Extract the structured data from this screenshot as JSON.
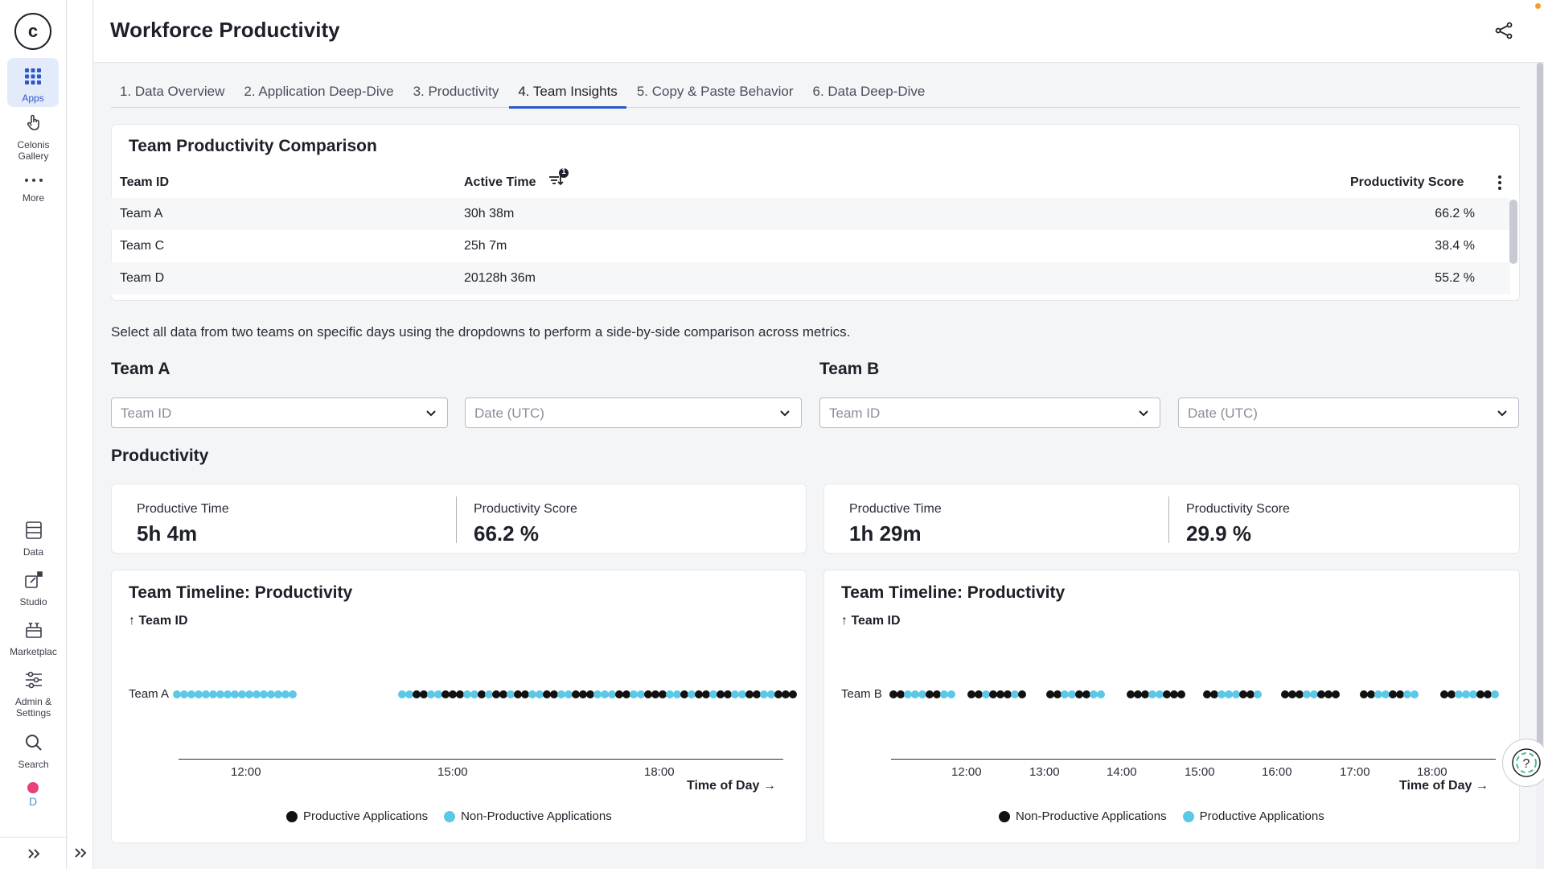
{
  "app": {
    "title": "Workforce Productivity",
    "logo_letter": "c"
  },
  "rail": {
    "items": [
      {
        "label": "Apps",
        "icon": "apps-grid-icon"
      },
      {
        "label": "Celonis Gallery",
        "icon": "hand-pointer-icon"
      },
      {
        "label": "More",
        "icon": "more-dots-icon"
      },
      {
        "label": "Data",
        "icon": "database-icon"
      },
      {
        "label": "Studio",
        "icon": "studio-icon"
      },
      {
        "label": "Marketplac",
        "icon": "marketplace-icon"
      },
      {
        "label": "Admin & Settings",
        "icon": "sliders-icon"
      },
      {
        "label": "Search",
        "icon": "search-icon"
      }
    ],
    "avatar_letter": "D"
  },
  "tabs": [
    {
      "label": "1. Data Overview",
      "active": false
    },
    {
      "label": "2. Application Deep-Dive",
      "active": false
    },
    {
      "label": "3. Productivity",
      "active": false
    },
    {
      "label": "4. Team Insights",
      "active": true
    },
    {
      "label": "5. Copy & Paste Behavior",
      "active": false
    },
    {
      "label": "6. Data Deep-Dive",
      "active": false
    }
  ],
  "comparison": {
    "title": "Team Productivity Comparison",
    "columns": [
      "Team ID",
      "Active Time",
      "Productivity Score"
    ],
    "sort_badge": "1",
    "rows": [
      {
        "team": "Team A",
        "active": "30h 38m",
        "score": "66.2 %"
      },
      {
        "team": "Team C",
        "active": "25h 7m",
        "score": "38.4 %"
      },
      {
        "team": "Team D",
        "active": "20128h 36m",
        "score": "55.2 %"
      }
    ]
  },
  "description": "Select all data from two teams on specific days using the dropdowns to perform a side-by-side comparison across metrics.",
  "team_a": {
    "heading": "Team A",
    "team_placeholder": "Team ID",
    "date_placeholder": "Date (UTC)"
  },
  "team_b": {
    "heading": "Team B",
    "team_placeholder": "Team ID",
    "date_placeholder": "Date (UTC)"
  },
  "productivity": {
    "heading": "Productivity",
    "left": {
      "time_label": "Productive Time",
      "time_value": "5h 4m",
      "score_label": "Productivity Score",
      "score_value": "66.2 %"
    },
    "right": {
      "time_label": "Productive Time",
      "time_value": "1h 29m",
      "score_label": "Productivity Score",
      "score_value": "29.9 %"
    }
  },
  "timelines": {
    "left": {
      "title": "Team Timeline: Productivity",
      "sort_label": "↑ Team ID",
      "row_label": "Team A",
      "ticks": [
        "12:00",
        "15:00",
        "18:00"
      ],
      "xlabel": "Time of Day →",
      "legend": [
        "Productive Applications",
        "Non-Productive Applications"
      ]
    },
    "right": {
      "title": "Team Timeline: Productivity",
      "sort_label": "↑ Team ID",
      "row_label": "Team B",
      "ticks": [
        "12:00",
        "13:00",
        "14:00",
        "15:00",
        "16:00",
        "17:00",
        "18:00"
      ],
      "xlabel": "Time of Day →",
      "legend": [
        "Non-Productive Applications",
        "Productive Applications"
      ]
    }
  },
  "colors": {
    "black_series": "#111111",
    "cyan_series": "#5bc8e8",
    "accent": "#2d58c8",
    "avatar_dot": "#e8407a"
  },
  "chart_data": [
    {
      "type": "scatter",
      "title": "Team Timeline: Productivity",
      "xlabel": "Time of Day",
      "ylabel": "Team ID",
      "categories": [
        "Team A"
      ],
      "xticks": [
        "12:00",
        "15:00",
        "18:00"
      ],
      "series": [
        {
          "name": "Productive Applications",
          "color": "#111111"
        },
        {
          "name": "Non-Productive Applications",
          "color": "#5bc8e8"
        }
      ]
    },
    {
      "type": "scatter",
      "title": "Team Timeline: Productivity",
      "xlabel": "Time of Day",
      "ylabel": "Team ID",
      "categories": [
        "Team B"
      ],
      "xticks": [
        "12:00",
        "13:00",
        "14:00",
        "15:00",
        "16:00",
        "17:00",
        "18:00"
      ],
      "series": [
        {
          "name": "Non-Productive Applications",
          "color": "#111111"
        },
        {
          "name": "Productive Applications",
          "color": "#5bc8e8"
        }
      ]
    }
  ]
}
